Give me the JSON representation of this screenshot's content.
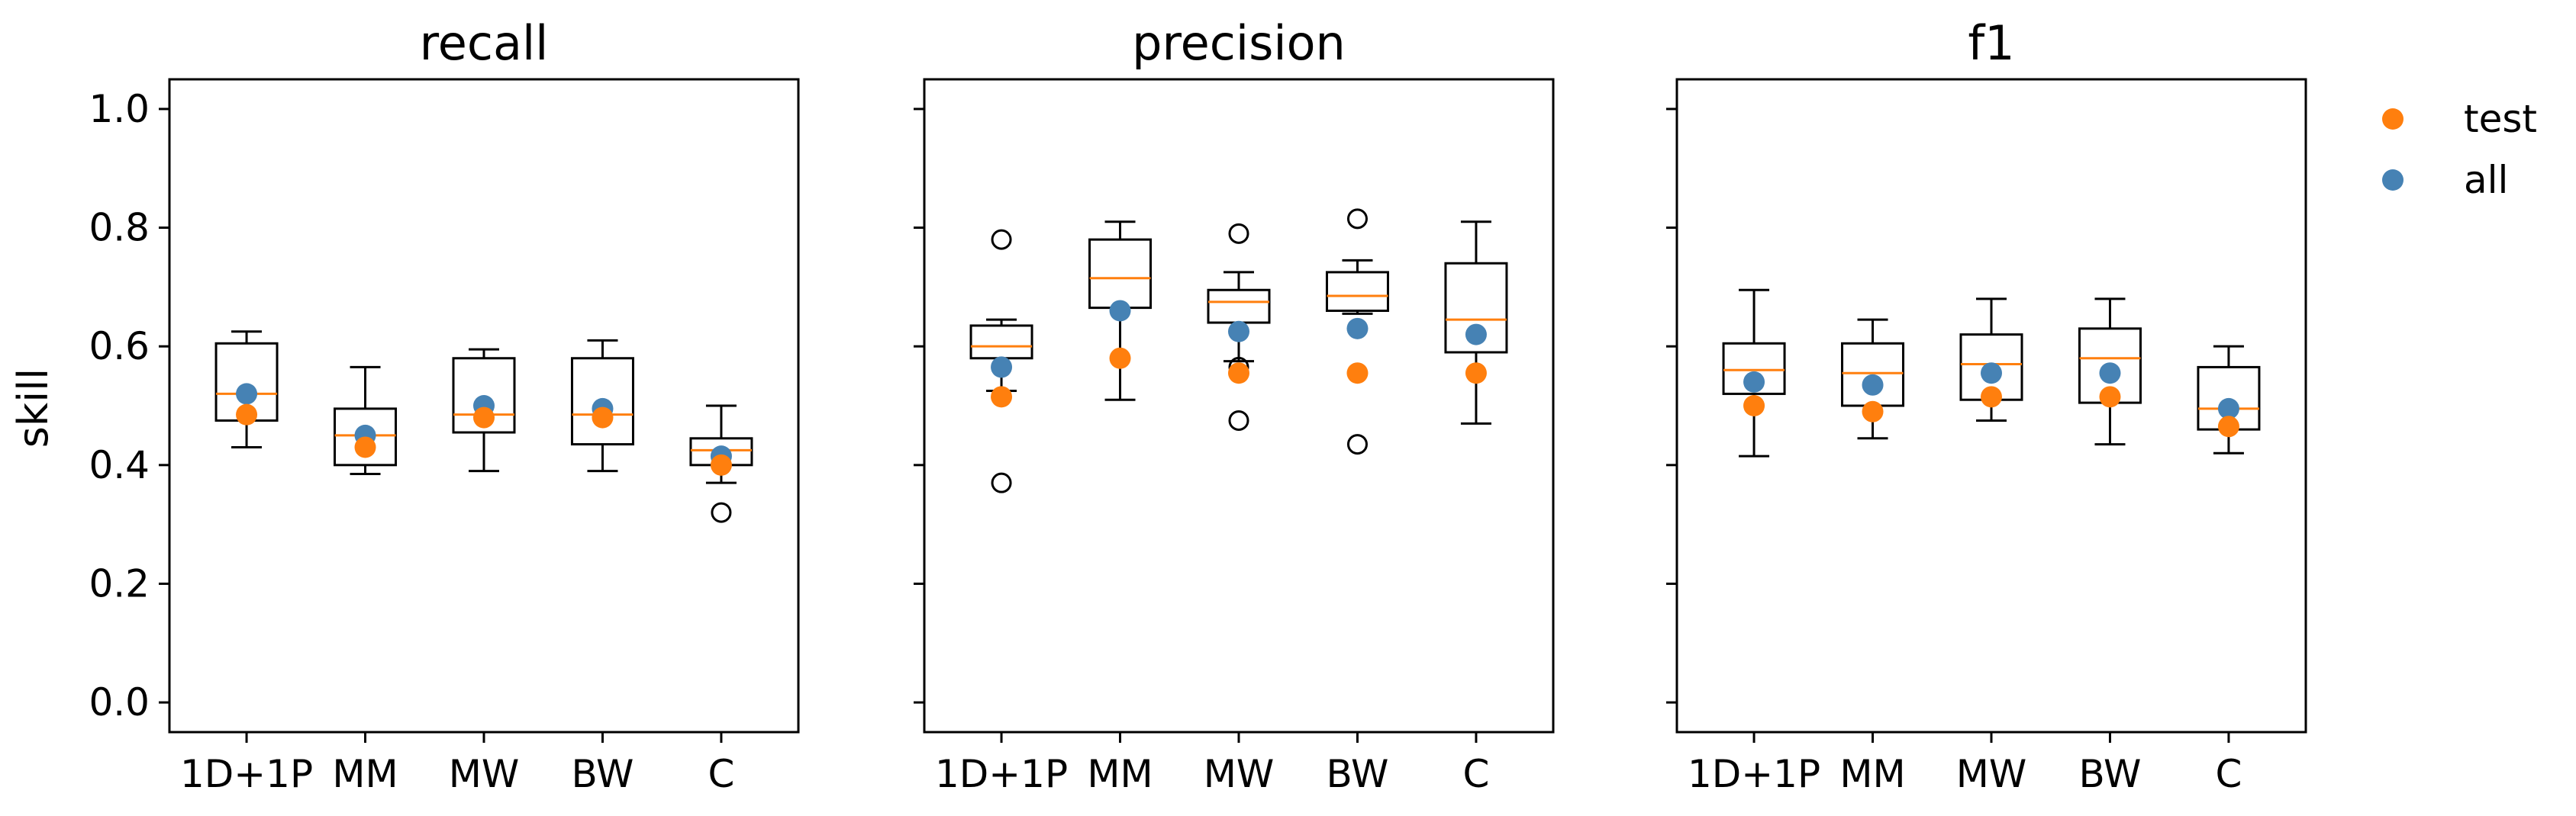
{
  "chart_data": {
    "type": "box",
    "ylabel": "skill",
    "ylim": [
      -0.05,
      1.05
    ],
    "yticks": [
      0.0,
      0.2,
      0.4,
      0.6,
      0.8,
      1.0
    ],
    "ytick_labels": [
      "0.0",
      "0.2",
      "0.4",
      "0.6",
      "0.8",
      "1.0"
    ],
    "categories": [
      "1D+1P",
      "MM",
      "MW",
      "BW",
      "C"
    ],
    "legend": {
      "position": "top-right",
      "entries": [
        {
          "name": "test",
          "color": "#ff7f0e"
        },
        {
          "name": "all",
          "color": "#4682b4"
        }
      ]
    },
    "colors": {
      "median": "#ff7f0e",
      "test": "#ff7f0e",
      "all": "#4682b4",
      "box": "#000000"
    },
    "panels": [
      {
        "title": "recall",
        "boxes": [
          {
            "q1": 0.475,
            "median": 0.52,
            "q3": 0.605,
            "whisker_low": 0.43,
            "whisker_high": 0.625,
            "fliers": []
          },
          {
            "q1": 0.4,
            "median": 0.45,
            "q3": 0.495,
            "whisker_low": 0.385,
            "whisker_high": 0.565,
            "fliers": []
          },
          {
            "q1": 0.455,
            "median": 0.485,
            "q3": 0.58,
            "whisker_low": 0.39,
            "whisker_high": 0.595,
            "fliers": []
          },
          {
            "q1": 0.435,
            "median": 0.485,
            "q3": 0.58,
            "whisker_low": 0.39,
            "whisker_high": 0.61,
            "fliers": []
          },
          {
            "q1": 0.4,
            "median": 0.425,
            "q3": 0.445,
            "whisker_low": 0.37,
            "whisker_high": 0.5,
            "fliers": [
              0.32
            ]
          }
        ],
        "all": [
          0.52,
          0.45,
          0.5,
          0.495,
          0.415
        ],
        "test": [
          0.485,
          0.43,
          0.48,
          0.48,
          0.4
        ]
      },
      {
        "title": "precision",
        "boxes": [
          {
            "q1": 0.58,
            "median": 0.6,
            "q3": 0.635,
            "whisker_low": 0.525,
            "whisker_high": 0.645,
            "fliers": [
              0.78,
              0.37
            ]
          },
          {
            "q1": 0.665,
            "median": 0.715,
            "q3": 0.78,
            "whisker_low": 0.51,
            "whisker_high": 0.81,
            "fliers": []
          },
          {
            "q1": 0.64,
            "median": 0.675,
            "q3": 0.695,
            "whisker_low": 0.575,
            "whisker_high": 0.725,
            "fliers": [
              0.79,
              0.565,
              0.475
            ]
          },
          {
            "q1": 0.66,
            "median": 0.685,
            "q3": 0.725,
            "whisker_low": 0.655,
            "whisker_high": 0.745,
            "fliers": [
              0.815,
              0.555,
              0.435
            ]
          },
          {
            "q1": 0.59,
            "median": 0.645,
            "q3": 0.74,
            "whisker_low": 0.47,
            "whisker_high": 0.81,
            "fliers": []
          }
        ],
        "all": [
          0.565,
          0.66,
          0.625,
          0.63,
          0.62
        ],
        "test": [
          0.515,
          0.58,
          0.555,
          0.555,
          0.555
        ]
      },
      {
        "title": "f1",
        "boxes": [
          {
            "q1": 0.52,
            "median": 0.56,
            "q3": 0.605,
            "whisker_low": 0.415,
            "whisker_high": 0.695,
            "fliers": []
          },
          {
            "q1": 0.5,
            "median": 0.555,
            "q3": 0.605,
            "whisker_low": 0.445,
            "whisker_high": 0.645,
            "fliers": []
          },
          {
            "q1": 0.51,
            "median": 0.57,
            "q3": 0.62,
            "whisker_low": 0.475,
            "whisker_high": 0.68,
            "fliers": []
          },
          {
            "q1": 0.505,
            "median": 0.58,
            "q3": 0.63,
            "whisker_low": 0.435,
            "whisker_high": 0.68,
            "fliers": []
          },
          {
            "q1": 0.46,
            "median": 0.495,
            "q3": 0.565,
            "whisker_low": 0.42,
            "whisker_high": 0.6,
            "fliers": []
          }
        ],
        "all": [
          0.54,
          0.535,
          0.555,
          0.555,
          0.495
        ],
        "test": [
          0.5,
          0.49,
          0.515,
          0.515,
          0.465
        ]
      }
    ]
  }
}
